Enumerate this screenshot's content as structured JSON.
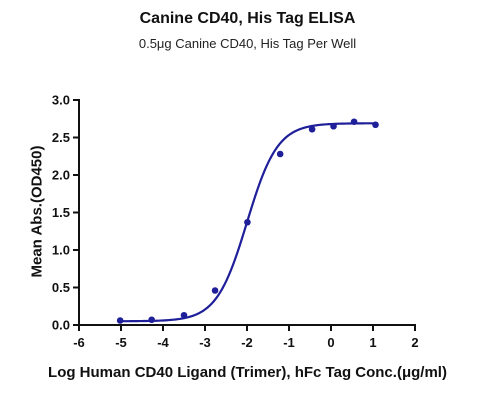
{
  "chart_data": {
    "type": "scatter",
    "title": "Canine CD40, His Tag ELISA",
    "subtitle": "0.5μg Canine CD40, His Tag Per Well",
    "xlabel": "Log Human CD40 Ligand (Trimer), hFc Tag Conc.(μg/ml)",
    "ylabel": "Mean Abs.(OD450)",
    "xlim": [
      -6,
      2
    ],
    "ylim": [
      0,
      3.0
    ],
    "xticks": [
      "-6",
      "-5",
      "-4",
      "-3",
      "-2",
      "-1",
      "0",
      "1",
      "2"
    ],
    "yticks": [
      "0.0",
      "0.5",
      "1.0",
      "1.5",
      "2.0",
      "2.5",
      "3.0"
    ],
    "grid": false,
    "series_color": "#1f1f9a",
    "points": [
      {
        "x": -5.02,
        "y": 0.06
      },
      {
        "x": -4.27,
        "y": 0.07
      },
      {
        "x": -3.5,
        "y": 0.13
      },
      {
        "x": -2.76,
        "y": 0.46
      },
      {
        "x": -1.99,
        "y": 1.37
      },
      {
        "x": -1.21,
        "y": 2.28
      },
      {
        "x": -0.45,
        "y": 2.61
      },
      {
        "x": 0.06,
        "y": 2.65
      },
      {
        "x": 0.55,
        "y": 2.71
      },
      {
        "x": 1.06,
        "y": 2.67
      }
    ],
    "fit": {
      "model": "4PL",
      "bottom": 0.05,
      "top": 2.69,
      "logEC50": -2.0,
      "hill": 1.2
    }
  }
}
